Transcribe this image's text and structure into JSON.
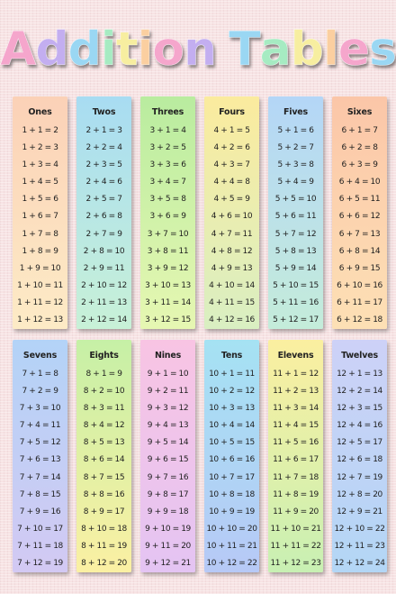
{
  "title": {
    "letters": [
      {
        "ch": "A",
        "color": "#f5a6cc"
      },
      {
        "ch": "d",
        "color": "#c3aef0"
      },
      {
        "ch": "d",
        "color": "#9ad7f3"
      },
      {
        "ch": "i",
        "color": "#a6ebc2"
      },
      {
        "ch": "t",
        "color": "#f7eea0"
      },
      {
        "ch": "i",
        "color": "#fbcfa0"
      },
      {
        "ch": "o",
        "color": "#f5a6cc"
      },
      {
        "ch": "n",
        "color": "#c3aef0"
      },
      {
        "ch": " ",
        "color": ""
      },
      {
        "ch": "T",
        "color": "#9ad7f3"
      },
      {
        "ch": "a",
        "color": "#a6ebc2"
      },
      {
        "ch": "b",
        "color": "#f7eea0"
      },
      {
        "ch": "l",
        "color": "#fbcfa0"
      },
      {
        "ch": "e",
        "color": "#f5a6cc"
      },
      {
        "ch": "s",
        "color": "#9ad7f3"
      }
    ]
  },
  "tables": [
    {
      "name": "Ones",
      "colors": [
        "#fbd1b7",
        "#fdebc6"
      ],
      "equations": [
        "1 + 1 = 2",
        "1 + 2 = 3",
        "1 + 3 = 4",
        "1 + 4 = 5",
        "1 + 5 = 6",
        "1 + 6 = 7",
        "1 + 7 = 8",
        "1 + 8 = 9",
        "1 + 9 = 10",
        "1 + 10 = 11",
        "1 + 11 = 12",
        "1 + 12 = 13"
      ]
    },
    {
      "name": "Twos",
      "colors": [
        "#a8dcf2",
        "#c8f1d7"
      ],
      "equations": [
        "2 + 1 = 3",
        "2 + 2 = 4",
        "2 + 3 = 5",
        "2 + 4 = 6",
        "2 + 5 = 7",
        "2 + 6 = 8",
        "2 + 7 = 9",
        "2 + 8 = 10",
        "2 + 9 = 11",
        "2 + 10 = 12",
        "2 + 11 = 13",
        "2 + 12 = 14"
      ]
    },
    {
      "name": "Threes",
      "colors": [
        "#b9ec9f",
        "#e6f7b2"
      ],
      "equations": [
        "3 + 1 = 4",
        "3 + 2 = 5",
        "3 + 3 = 6",
        "3 + 4 = 7",
        "3 + 5 = 8",
        "3 + 6 = 9",
        "3 + 7 = 10",
        "3 + 8 = 11",
        "3 + 9 = 12",
        "3 + 10 = 13",
        "3 + 11 = 14",
        "3 + 12 = 15"
      ]
    },
    {
      "name": "Fours",
      "colors": [
        "#fbeb9e",
        "#d9efc2"
      ],
      "equations": [
        "4 + 1 = 5",
        "4 + 2 = 6",
        "4 + 3 = 7",
        "4 + 4 = 8",
        "4 + 5 = 9",
        "4 + 6 = 10",
        "4 + 7 = 11",
        "4 + 8 = 12",
        "4 + 9 = 13",
        "4 + 10 = 14",
        "4 + 11 = 15",
        "4 + 12 = 16"
      ]
    },
    {
      "name": "Fives",
      "colors": [
        "#b4d6f7",
        "#c4ecda"
      ],
      "equations": [
        "5 + 1 = 6",
        "5 + 2 = 7",
        "5 + 3 = 8",
        "5 + 4 = 9",
        "5 + 5 = 10",
        "5 + 6 = 11",
        "5 + 7 = 12",
        "5 + 8 = 13",
        "5 + 9 = 14",
        "5 + 10 = 15",
        "5 + 11 = 16",
        "5 + 12 = 17"
      ]
    },
    {
      "name": "Sixes",
      "colors": [
        "#fbc6a8",
        "#fde0b5"
      ],
      "equations": [
        "6 + 1 = 7",
        "6 + 2 = 8",
        "6 + 3 = 9",
        "6 + 4 = 10",
        "6 + 5 = 11",
        "6 + 6 = 12",
        "6 + 7 = 13",
        "6 + 8 = 14",
        "6 + 9 = 15",
        "6 + 10 = 16",
        "6 + 11 = 17",
        "6 + 12 = 18"
      ]
    },
    {
      "name": "Sevens",
      "colors": [
        "#b3d3f7",
        "#d3c9f3"
      ],
      "equations": [
        "7 + 1 = 8",
        "7 + 2 = 9",
        "7 + 3 = 10",
        "7 + 4 = 11",
        "7 + 5 = 12",
        "7 + 6 = 13",
        "7 + 7 = 14",
        "7 + 8 = 15",
        "7 + 9 = 16",
        "7 + 10 = 17",
        "7 + 11 = 18",
        "7 + 12 = 19"
      ]
    },
    {
      "name": "Eights",
      "colors": [
        "#c6f0a6",
        "#fbf0a3"
      ],
      "equations": [
        "8 + 1 = 9",
        "8 + 2 = 10",
        "8 + 3 = 11",
        "8 + 4 = 12",
        "8 + 5 = 13",
        "8 + 6 = 14",
        "8 + 7 = 15",
        "8 + 8 = 16",
        "8 + 9 = 17",
        "8 + 10 = 18",
        "8 + 11 = 19",
        "8 + 12 = 20"
      ]
    },
    {
      "name": "Nines",
      "colors": [
        "#f8c4e3",
        "#e4c4f3"
      ],
      "equations": [
        "9 + 1 = 10",
        "9 + 2 = 11",
        "9 + 3 = 12",
        "9 + 4 = 13",
        "9 + 5 = 14",
        "9 + 6 = 15",
        "9 + 7 = 16",
        "9 + 8 = 17",
        "9 + 9 = 18",
        "9 + 10 = 19",
        "9 + 11 = 20",
        "9 + 12 = 21"
      ]
    },
    {
      "name": "Tens",
      "colors": [
        "#a5e2f3",
        "#b7c9f6"
      ],
      "equations": [
        "10 + 1 = 11",
        "10 + 2 = 12",
        "10 + 3 = 13",
        "10 + 4 = 14",
        "10 + 5 = 15",
        "10 + 6 = 16",
        "10 + 7 = 17",
        "10 + 8 = 18",
        "10 + 9 = 19",
        "10 + 10 = 20",
        "10 + 11 = 21",
        "10 + 12 = 22"
      ]
    },
    {
      "name": "Elevens",
      "colors": [
        "#fbefa0",
        "#c8f0b3"
      ],
      "equations": [
        "11 + 1 = 12",
        "11 + 2 = 13",
        "11 + 3 = 14",
        "11 + 4 = 15",
        "11 + 5 = 16",
        "11 + 6 = 17",
        "11 + 7 = 18",
        "11 + 8 = 19",
        "11 + 9 = 20",
        "11 + 10 = 21",
        "11 + 11 = 22",
        "11 + 12 = 23"
      ]
    },
    {
      "name": "Twelves",
      "colors": [
        "#cdd1f7",
        "#b3d6f5"
      ],
      "equations": [
        "12 + 1 = 13",
        "12 + 2 = 14",
        "12 + 3 = 15",
        "12 + 4 = 16",
        "12 + 5 = 17",
        "12 + 6 = 18",
        "12 + 7 = 19",
        "12 + 8 = 20",
        "12 + 9 = 21",
        "12 + 10 = 22",
        "12 + 11 = 23",
        "12 + 12 = 24"
      ]
    }
  ]
}
